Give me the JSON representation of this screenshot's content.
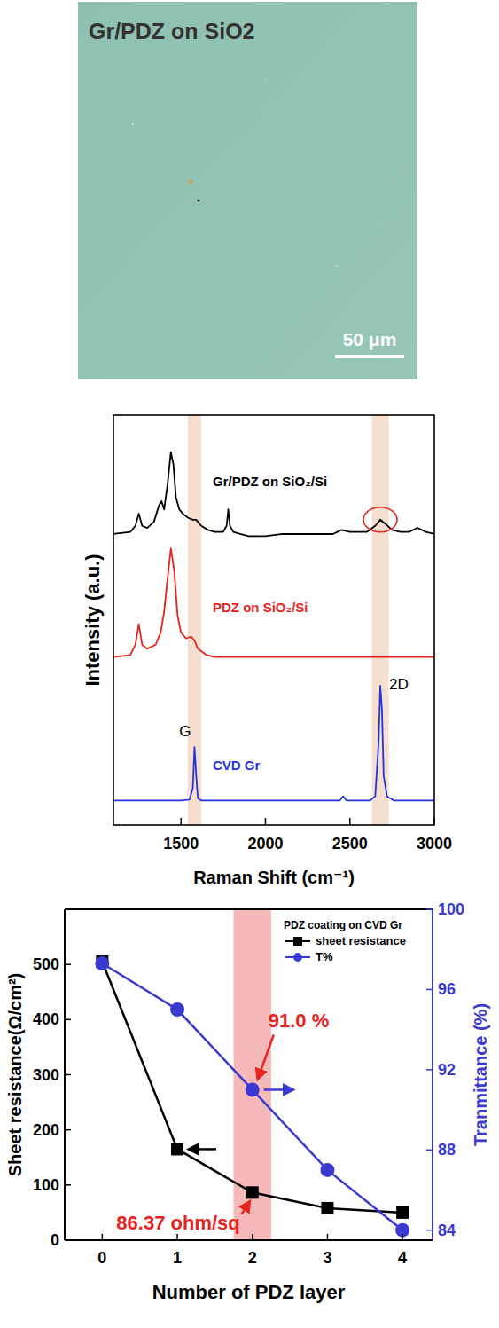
{
  "image": {
    "title": "Gr/PDZ on SiO2",
    "scale_bar": "50 μm"
  },
  "chart_data": [
    {
      "type": "line",
      "x_label": "Raman Shift (cm⁻¹)",
      "y_label": "Intensity (a.u.)",
      "xlim": [
        1100,
        3000
      ],
      "xticks": [
        1500,
        2000,
        2500,
        3000
      ],
      "ylim": [
        0,
        100
      ],
      "tick_labels": "x",
      "series": [
        {
          "name": "Gr/PDZ on SiO₂/Si",
          "color": "#000000",
          "x": [
            1100,
            1200,
            1230,
            1250,
            1270,
            1300,
            1340,
            1370,
            1385,
            1400,
            1420,
            1440,
            1455,
            1470,
            1490,
            1510,
            1540,
            1570,
            1590,
            1620,
            1660,
            1700,
            1750,
            1770,
            1780,
            1790,
            1810,
            1850,
            1900,
            2000,
            2100,
            2200,
            2300,
            2400,
            2450,
            2500,
            2550,
            2600,
            2650,
            2680,
            2710,
            2750,
            2800,
            2850,
            2900,
            2950,
            3000
          ],
          "values": [
            71,
            71.5,
            73,
            76,
            73,
            72.5,
            74,
            78,
            79,
            77,
            83,
            91,
            88,
            80,
            77,
            76,
            75,
            74.5,
            74.5,
            73,
            72,
            71.5,
            71.5,
            73,
            77,
            73,
            71.5,
            71,
            70.5,
            70.5,
            71,
            71,
            71,
            71,
            72,
            71.5,
            71.5,
            71.5,
            73,
            74.5,
            73.5,
            72,
            71.5,
            71.5,
            72.5,
            71.5,
            71
          ]
        },
        {
          "name": "PDZ on SiO₂/Si",
          "color": "#e8231e",
          "x": [
            1100,
            1200,
            1230,
            1250,
            1270,
            1300,
            1350,
            1380,
            1400,
            1420,
            1440,
            1460,
            1480,
            1500,
            1530,
            1560,
            1580,
            1600,
            1650,
            1700,
            1800,
            1900,
            2000,
            2200,
            2400,
            2600,
            2800,
            3000
          ],
          "values": [
            41,
            41.5,
            44,
            49,
            44,
            43,
            44,
            47,
            52,
            60,
            67.5,
            62,
            51,
            47,
            45.5,
            46,
            45,
            43,
            41.5,
            41,
            41,
            41,
            41,
            41,
            41,
            41,
            41,
            41
          ]
        },
        {
          "name": "CVD Gr",
          "color": "#1f35e0",
          "x": [
            1100,
            1400,
            1500,
            1550,
            1570,
            1580,
            1590,
            1600,
            1620,
            1700,
            2000,
            2300,
            2440,
            2460,
            2480,
            2550,
            2620,
            2650,
            2670,
            2680,
            2690,
            2700,
            2720,
            2760,
            2850,
            3000
          ],
          "values": [
            6,
            6,
            6,
            6.2,
            9,
            19,
            12,
            6.5,
            6,
            6,
            6,
            6,
            6,
            7,
            6,
            6,
            6,
            7,
            20,
            34,
            28,
            12,
            7,
            6,
            6,
            6
          ]
        }
      ],
      "bands": [
        [
          1540,
          1620
        ],
        [
          2630,
          2730
        ]
      ],
      "annotations": [
        {
          "text": "G",
          "x": 1585,
          "y": 19
        },
        {
          "text": "2D",
          "x": 2680,
          "y": 34
        }
      ],
      "highlight": {
        "x": 2680,
        "y": 74.5
      }
    },
    {
      "type": "line",
      "x_label": "Number of PDZ layer",
      "y_label": "Sheet resistance(Ω/cm²)",
      "y2_label": "Tranmittance (%)",
      "x": [
        0,
        1,
        2,
        3,
        4
      ],
      "xlim": [
        -0.5,
        4.4
      ],
      "xticks": [
        0,
        1,
        2,
        3,
        4
      ],
      "ylim": [
        0,
        600
      ],
      "yticks": [
        0,
        100,
        200,
        300,
        400,
        500
      ],
      "y2lim": [
        83.5,
        100
      ],
      "y2ticks": [
        84,
        88,
        92,
        96,
        100
      ],
      "legend": "upper right",
      "legend_title": "PDZ coating on CVD Gr",
      "series": [
        {
          "name": "sheet resistance",
          "color": "#000000",
          "marker": "square",
          "values": [
            505,
            165,
            86.37,
            58,
            50
          ]
        },
        {
          "name": "T%",
          "color": "#3a3ad0",
          "marker": "circle",
          "axis": "y2",
          "values": [
            97.3,
            95,
            91.0,
            87,
            84
          ]
        }
      ],
      "annotations": [
        {
          "text": "91.0 %",
          "x": 2,
          "y": 91.0,
          "axis": "y2"
        },
        {
          "text": "86.37 ohm/sq",
          "x": 2,
          "y": 86.37
        }
      ],
      "highlight": {
        "x": [
          1.75,
          2.25
        ]
      }
    }
  ]
}
